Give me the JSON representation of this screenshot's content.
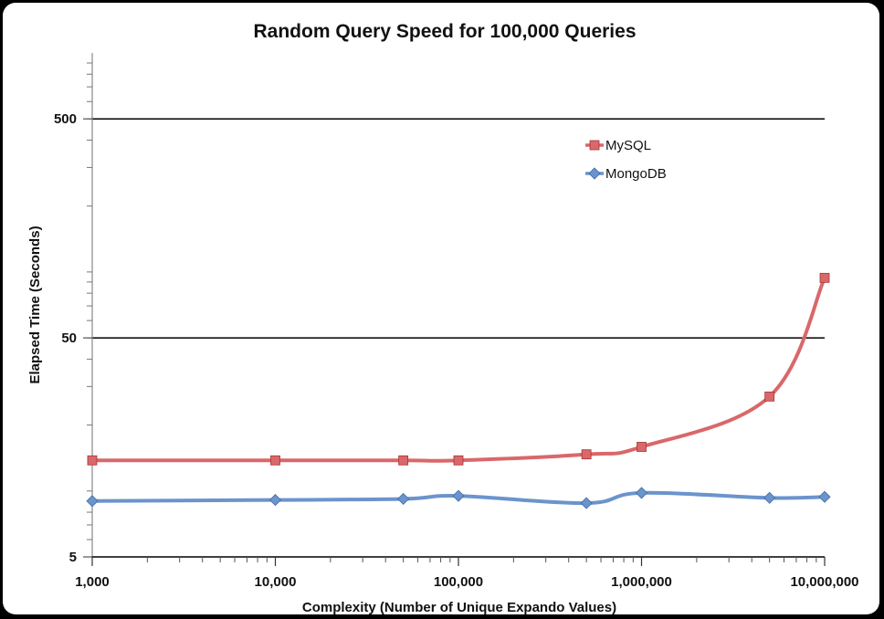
{
  "chart_data": {
    "type": "line",
    "title": "Random Query Speed for 100,000 Queries",
    "xlabel": "Complexity (Number of Unique Expando Values)",
    "ylabel": "Elapsed Time (Seconds)",
    "x_scale": "log",
    "y_scale": "log",
    "xlim": [
      1000,
      10000000
    ],
    "ylim": [
      5,
      1000
    ],
    "x_ticks": [
      1000,
      10000,
      100000,
      1000000,
      10000000
    ],
    "x_tick_labels": [
      "1,000",
      "10,000",
      "100,000",
      "1,000,000",
      "10,000,000"
    ],
    "y_ticks": [
      5,
      50,
      500
    ],
    "y_tick_labels": [
      "5",
      "50",
      "500"
    ],
    "gridlines_y": [
      50,
      500
    ],
    "legend_position": "top-right",
    "series": [
      {
        "name": "MySQL",
        "color": "#c0504d",
        "line_color": "#d9686a",
        "marker": "square",
        "x": [
          1000,
          10000,
          50000,
          100000,
          500000,
          1000000,
          5000000,
          10000000
        ],
        "y": [
          13.8,
          13.8,
          13.8,
          13.8,
          14.7,
          15.9,
          27,
          94
        ]
      },
      {
        "name": "MongoDB",
        "color": "#4f81bd",
        "line_color": "#6b94cc",
        "marker": "diamond",
        "x": [
          1000,
          10000,
          50000,
          100000,
          500000,
          1000000,
          5000000,
          10000000
        ],
        "y": [
          9.0,
          9.1,
          9.2,
          9.5,
          8.8,
          9.8,
          9.3,
          9.4
        ]
      }
    ]
  }
}
